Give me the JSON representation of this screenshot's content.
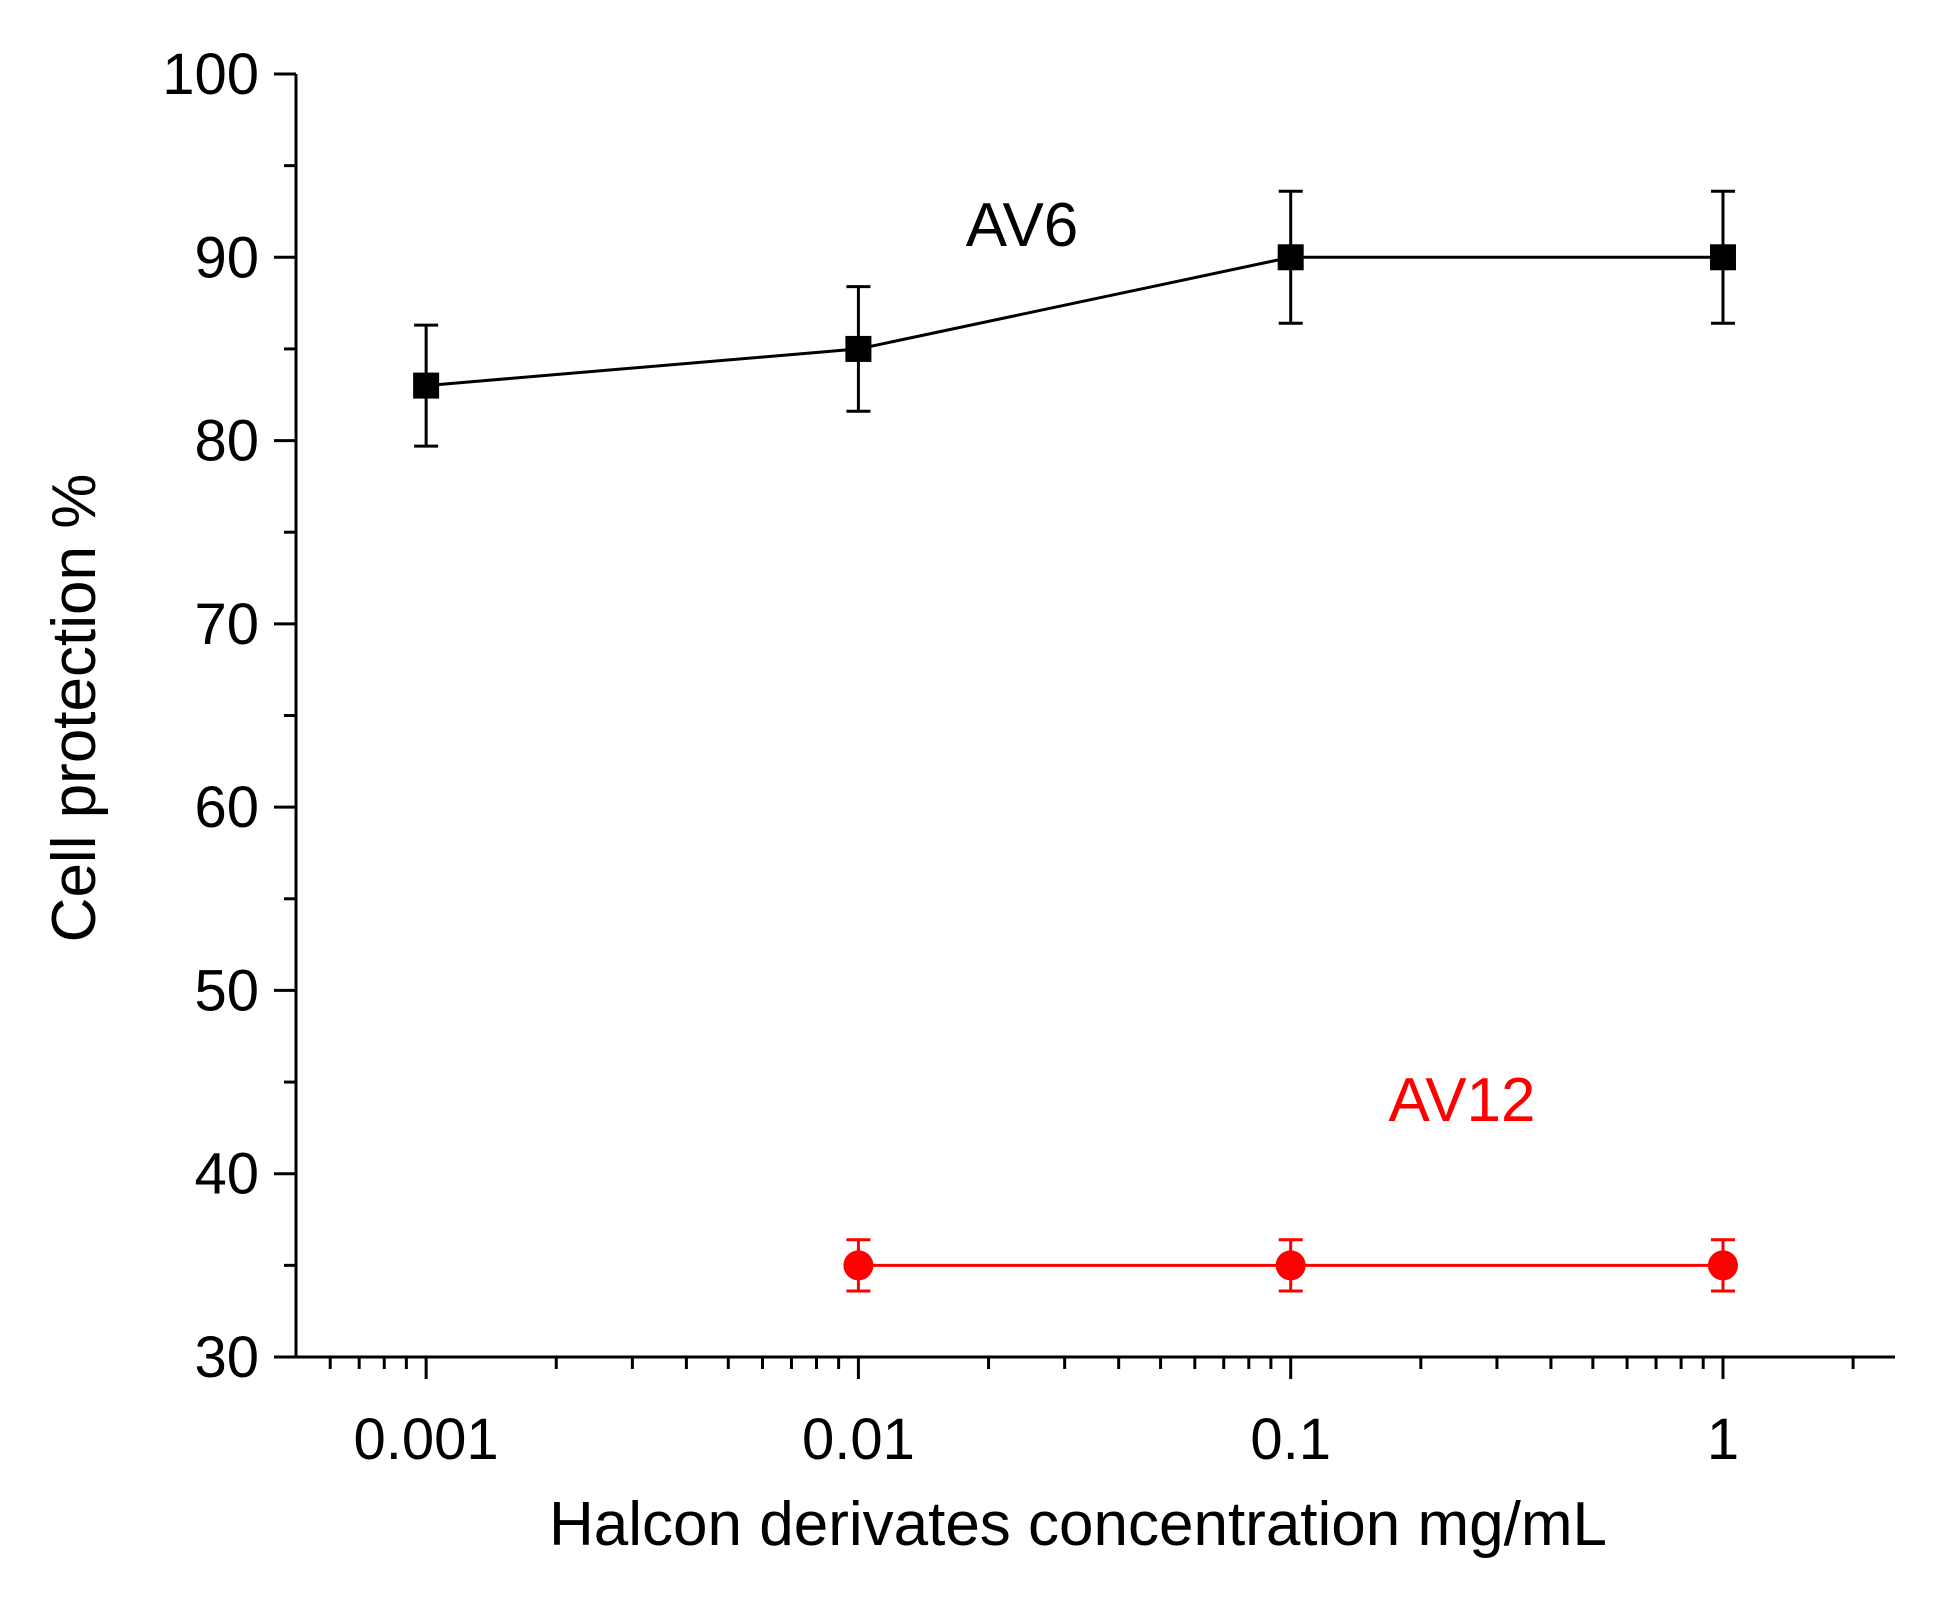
{
  "chart_data": {
    "type": "line",
    "title": "",
    "xlabel": "Halcon derivates concentration mg/mL",
    "ylabel": "Cell protection %",
    "xscale": "log",
    "xlim": [
      0.0005,
      2.5
    ],
    "ylim": [
      30,
      100
    ],
    "y_major_ticks": [
      30,
      40,
      50,
      60,
      70,
      80,
      90,
      100
    ],
    "y_tick_labels": [
      "30",
      "40",
      "50",
      "60",
      "70",
      "80",
      "90",
      "100"
    ],
    "y_minor_step": 5,
    "x_major_ticks": [
      0.001,
      0.01,
      0.1,
      1
    ],
    "x_tick_labels": [
      "0.001",
      "0.01",
      "0.1",
      "1"
    ],
    "grid": false,
    "legend": "inline labels",
    "series": [
      {
        "name": "AV6",
        "label": "AV6",
        "color": "#000000",
        "marker": "square",
        "x": [
          0.001,
          0.01,
          0.1,
          1
        ],
        "y": [
          83,
          85,
          90,
          90
        ],
        "error": [
          3.3,
          3.4,
          3.6,
          3.6
        ]
      },
      {
        "name": "AV12",
        "label": "AV12",
        "color": "#ff0000",
        "marker": "circle",
        "x": [
          0.01,
          0.1,
          1
        ],
        "y": [
          35,
          35,
          35
        ],
        "error": [
          1.4,
          1.4,
          1.4
        ]
      }
    ]
  }
}
